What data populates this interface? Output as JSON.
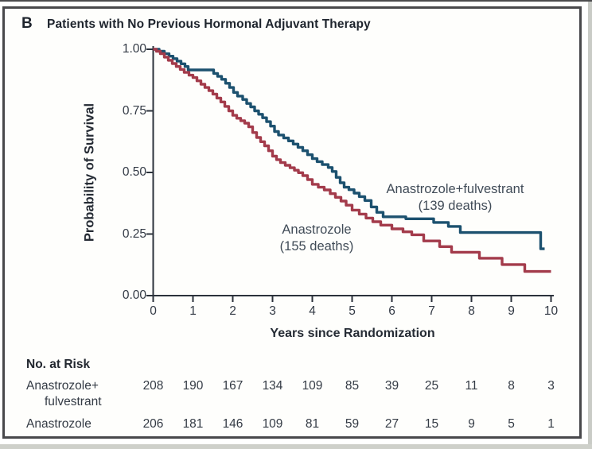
{
  "panel": {
    "letter": "B",
    "title": "Patients with No Previous Hormonal Adjuvant Therapy"
  },
  "colors": {
    "combo_curve": "#1c516f",
    "anastrozole_curve": "#a33b4b",
    "border": "#48484b",
    "axis": "#2c323c"
  },
  "chart_data": {
    "type": "line",
    "subtype": "kaplan-meier-step",
    "title": "Patients with No Previous Hormonal Adjuvant Therapy",
    "xlabel": "Years since Randomization",
    "ylabel": "Probability of Survival",
    "xlim": [
      0,
      10
    ],
    "ylim": [
      0.0,
      1.0
    ],
    "xticks": [
      "0",
      "1",
      "2",
      "3",
      "4",
      "5",
      "6",
      "7",
      "8",
      "9",
      "10"
    ],
    "yticks": [
      "0.00",
      "0.25",
      "0.50",
      "0.75",
      "1.00"
    ],
    "grid": false,
    "legend_position": "inline-annotations",
    "series": [
      {
        "name": "Anastrozole+fulvestrant",
        "deaths": 139,
        "color": "#1c516f",
        "annotation": [
          "Anastrozole+fulvestrant",
          "(139 deaths)"
        ],
        "points": [
          [
            0,
            1.0
          ],
          [
            0.15,
            0.992
          ],
          [
            0.28,
            0.982
          ],
          [
            0.4,
            0.972
          ],
          [
            0.5,
            0.962
          ],
          [
            0.6,
            0.952
          ],
          [
            0.7,
            0.941
          ],
          [
            0.8,
            0.93
          ],
          [
            0.88,
            0.916
          ],
          [
            1.52,
            0.902
          ],
          [
            1.62,
            0.89
          ],
          [
            1.72,
            0.878
          ],
          [
            1.82,
            0.862
          ],
          [
            1.92,
            0.845
          ],
          [
            2.02,
            0.825
          ],
          [
            2.12,
            0.81
          ],
          [
            2.25,
            0.796
          ],
          [
            2.35,
            0.78
          ],
          [
            2.45,
            0.766
          ],
          [
            2.55,
            0.75
          ],
          [
            2.65,
            0.736
          ],
          [
            2.75,
            0.722
          ],
          [
            2.85,
            0.706
          ],
          [
            2.95,
            0.688
          ],
          [
            3.05,
            0.666
          ],
          [
            3.15,
            0.652
          ],
          [
            3.28,
            0.64
          ],
          [
            3.4,
            0.628
          ],
          [
            3.52,
            0.615
          ],
          [
            3.64,
            0.602
          ],
          [
            3.76,
            0.588
          ],
          [
            3.88,
            0.572
          ],
          [
            4.0,
            0.556
          ],
          [
            4.12,
            0.544
          ],
          [
            4.25,
            0.532
          ],
          [
            4.4,
            0.52
          ],
          [
            4.5,
            0.504
          ],
          [
            4.6,
            0.48
          ],
          [
            4.7,
            0.458
          ],
          [
            4.8,
            0.44
          ],
          [
            4.92,
            0.43
          ],
          [
            5.05,
            0.416
          ],
          [
            5.18,
            0.402
          ],
          [
            5.32,
            0.386
          ],
          [
            5.48,
            0.36
          ],
          [
            5.62,
            0.338
          ],
          [
            5.78,
            0.32
          ],
          [
            6.35,
            0.312
          ],
          [
            7.05,
            0.297
          ],
          [
            7.42,
            0.281
          ],
          [
            7.72,
            0.256
          ],
          [
            9.74,
            0.19
          ],
          [
            9.84,
            0.19
          ]
        ]
      },
      {
        "name": "Anastrozole",
        "deaths": 155,
        "color": "#a33b4b",
        "annotation": [
          "Anastrozole",
          "(155 deaths)"
        ],
        "points": [
          [
            0,
            1.0
          ],
          [
            0.08,
            0.992
          ],
          [
            0.18,
            0.982
          ],
          [
            0.28,
            0.968
          ],
          [
            0.38,
            0.955
          ],
          [
            0.48,
            0.942
          ],
          [
            0.58,
            0.93
          ],
          [
            0.68,
            0.918
          ],
          [
            0.78,
            0.906
          ],
          [
            0.9,
            0.895
          ],
          [
            1.0,
            0.885
          ],
          [
            1.1,
            0.872
          ],
          [
            1.2,
            0.858
          ],
          [
            1.3,
            0.845
          ],
          [
            1.4,
            0.832
          ],
          [
            1.5,
            0.818
          ],
          [
            1.6,
            0.802
          ],
          [
            1.7,
            0.786
          ],
          [
            1.8,
            0.768
          ],
          [
            1.9,
            0.75
          ],
          [
            2.0,
            0.732
          ],
          [
            2.1,
            0.72
          ],
          [
            2.2,
            0.71
          ],
          [
            2.3,
            0.7
          ],
          [
            2.4,
            0.685
          ],
          [
            2.5,
            0.662
          ],
          [
            2.6,
            0.642
          ],
          [
            2.7,
            0.625
          ],
          [
            2.8,
            0.608
          ],
          [
            2.9,
            0.588
          ],
          [
            3.0,
            0.566
          ],
          [
            3.1,
            0.552
          ],
          [
            3.2,
            0.54
          ],
          [
            3.32,
            0.529
          ],
          [
            3.44,
            0.519
          ],
          [
            3.55,
            0.509
          ],
          [
            3.65,
            0.499
          ],
          [
            3.76,
            0.487
          ],
          [
            3.88,
            0.471
          ],
          [
            4.0,
            0.452
          ],
          [
            4.15,
            0.44
          ],
          [
            4.3,
            0.429
          ],
          [
            4.45,
            0.414
          ],
          [
            4.58,
            0.399
          ],
          [
            4.72,
            0.384
          ],
          [
            4.85,
            0.367
          ],
          [
            5.0,
            0.347
          ],
          [
            5.18,
            0.331
          ],
          [
            5.35,
            0.315
          ],
          [
            5.52,
            0.3
          ],
          [
            5.72,
            0.286
          ],
          [
            6.0,
            0.271
          ],
          [
            6.28,
            0.259
          ],
          [
            6.5,
            0.247
          ],
          [
            6.8,
            0.222
          ],
          [
            7.2,
            0.199
          ],
          [
            7.5,
            0.176
          ],
          [
            8.2,
            0.152
          ],
          [
            8.77,
            0.126
          ],
          [
            9.34,
            0.098
          ],
          [
            10.0,
            0.098
          ]
        ]
      }
    ],
    "risk_table": {
      "title": "No. at Risk",
      "time_points": [
        0,
        1,
        2,
        3,
        4,
        5,
        6,
        7,
        8,
        9,
        10
      ],
      "rows": [
        {
          "label_lines": [
            "Anastrozole+",
            "fulvestrant"
          ],
          "values": [
            "208",
            "190",
            "167",
            "134",
            "109",
            "85",
            "39",
            "25",
            "11",
            "8",
            "3"
          ]
        },
        {
          "label_lines": [
            "Anastrozole"
          ],
          "values": [
            "206",
            "181",
            "146",
            "109",
            "81",
            "59",
            "27",
            "15",
            "9",
            "5",
            "1"
          ]
        }
      ]
    }
  }
}
